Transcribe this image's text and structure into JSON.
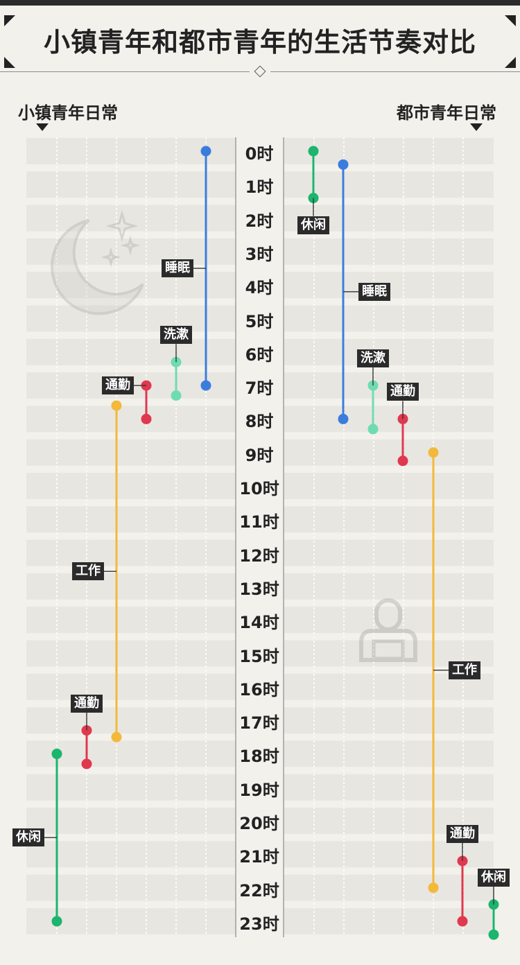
{
  "title": "小镇青年和都市青年的生活节奏对比",
  "left_header": "小镇青年日常",
  "right_header": "都市青年日常",
  "colors": {
    "睡眠": "#3b7ddd",
    "洗漱": "#6fdcb0",
    "通勤": "#e0384f",
    "工作": "#f2b93b",
    "休闲": "#1bb56e"
  },
  "icons": [
    "moon-stars-icon",
    "person-laptop-icon"
  ],
  "chart_data": {
    "type": "timeline",
    "y_axis": {
      "unit": "时",
      "ticks": [
        "0时",
        "1时",
        "2时",
        "3时",
        "4时",
        "5时",
        "6时",
        "7时",
        "8时",
        "9时",
        "10时",
        "11时",
        "12时",
        "13时",
        "14时",
        "15时",
        "16时",
        "17时",
        "18时",
        "19时",
        "20时",
        "21时",
        "22时",
        "23时"
      ],
      "range": [
        0,
        23.4
      ]
    },
    "sides": [
      {
        "name": "小镇青年日常",
        "activities": [
          {
            "label": "睡眠",
            "start": 0,
            "end": 7
          },
          {
            "label": "洗漱",
            "start": 6.3,
            "end": 7.3
          },
          {
            "label": "通勤",
            "start": 7,
            "end": 8
          },
          {
            "label": "工作",
            "start": 7.6,
            "end": 17.5
          },
          {
            "label": "通勤",
            "start": 17.3,
            "end": 18.3
          },
          {
            "label": "休闲",
            "start": 18,
            "end": 23
          }
        ]
      },
      {
        "name": "都市青年日常",
        "activities": [
          {
            "label": "休闲",
            "start": 0,
            "end": 1.4
          },
          {
            "label": "睡眠",
            "start": 0.4,
            "end": 8
          },
          {
            "label": "洗漱",
            "start": 7,
            "end": 8.3
          },
          {
            "label": "通勤",
            "start": 8,
            "end": 9.25
          },
          {
            "label": "工作",
            "start": 9,
            "end": 22
          },
          {
            "label": "通勤",
            "start": 21.2,
            "end": 23
          },
          {
            "label": "休闲",
            "start": 22.5,
            "end": 23.4
          }
        ]
      }
    ]
  }
}
